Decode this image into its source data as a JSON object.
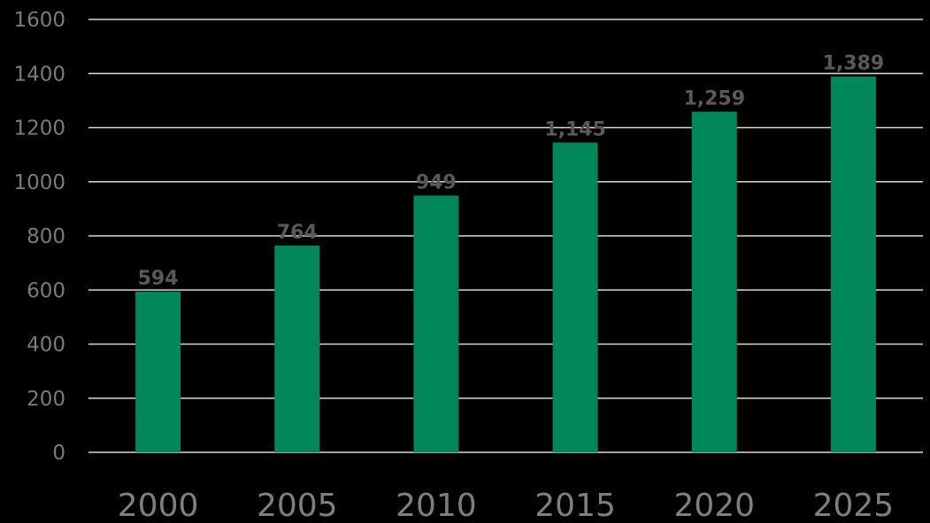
{
  "chart_data": {
    "type": "bar",
    "categories": [
      "2000",
      "2005",
      "2010",
      "2015",
      "2020",
      "2025"
    ],
    "values": [
      594,
      764,
      949,
      1145,
      1259,
      1389
    ],
    "value_labels": [
      "594",
      "764",
      "949",
      "1,145",
      "1,259",
      "1,389"
    ],
    "y_ticks": [
      "0",
      "200",
      "400",
      "600",
      "800",
      "1000",
      "1200",
      "1400",
      "1600"
    ],
    "ylim": [
      0,
      1600
    ],
    "grid": true,
    "legend": "none",
    "colors": {
      "bar": "#00875a",
      "background": "#000000",
      "grid": "#d9d9d9"
    }
  }
}
